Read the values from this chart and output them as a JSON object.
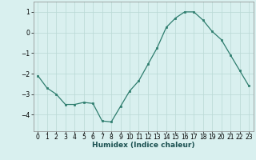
{
  "x": [
    0,
    1,
    2,
    3,
    4,
    5,
    6,
    7,
    8,
    9,
    10,
    11,
    12,
    13,
    14,
    15,
    16,
    17,
    18,
    19,
    20,
    21,
    22,
    23
  ],
  "y": [
    -2.1,
    -2.7,
    -3.0,
    -3.5,
    -3.5,
    -3.4,
    -3.45,
    -4.3,
    -4.35,
    -3.6,
    -2.85,
    -2.35,
    -1.55,
    -0.75,
    0.25,
    0.7,
    1.0,
    1.0,
    0.6,
    0.05,
    -0.35,
    -1.1,
    -1.85,
    -2.6
  ],
  "line_color": "#2e7d6e",
  "marker": "s",
  "markersize": 2.0,
  "linewidth": 0.9,
  "bg_color": "#d9f0ef",
  "grid_color": "#b8d8d5",
  "xlabel": "Humidex (Indice chaleur)",
  "xlabel_fontsize": 6.5,
  "tick_fontsize": 5.5,
  "ylim": [
    -4.8,
    1.5
  ],
  "yticks": [
    -4,
    -3,
    -2,
    -1,
    0,
    1
  ],
  "xticks": [
    0,
    1,
    2,
    3,
    4,
    5,
    6,
    7,
    8,
    9,
    10,
    11,
    12,
    13,
    14,
    15,
    16,
    17,
    18,
    19,
    20,
    21,
    22,
    23
  ]
}
